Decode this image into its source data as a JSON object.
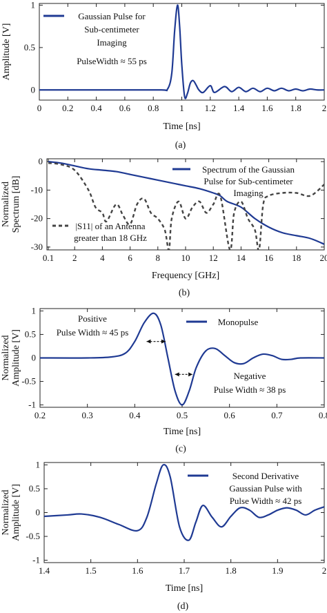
{
  "chart_data": [
    {
      "type": "line",
      "caption": "(a)",
      "xlabel": "Time [ns]",
      "ylabel": "Amplitude [V]",
      "xlim": [
        0,
        2
      ],
      "ylim": [
        -0.12,
        1.02
      ],
      "xticks": [
        "0",
        "0.2",
        "0.4",
        "0.6",
        "0.8",
        "1",
        "1.2",
        "1.4",
        "1.6",
        "1.8",
        "2"
      ],
      "yticks": [
        "0",
        "0.5",
        "1"
      ],
      "legend_position": "top-left",
      "color": "#1f3a93",
      "series": [
        {
          "name": "Gaussian Pulse for Sub-centimeter Imaging",
          "legend_lines": [
            "Gaussian Pulse for",
            "Sub-centimeter",
            "Imaging"
          ],
          "x": [
            0,
            0.5,
            0.85,
            0.9,
            0.93,
            0.95,
            0.97,
            0.985,
            1.0,
            1.02,
            1.04,
            1.06,
            1.08,
            1.1,
            1.12,
            1.15,
            1.2,
            1.23,
            1.3,
            1.35,
            1.4,
            1.45,
            1.5,
            1.55,
            1.6,
            1.65,
            1.7,
            1.75,
            1.8,
            1.85,
            1.9,
            1.95,
            2.0
          ],
          "y": [
            0,
            0,
            0,
            0.01,
            0.2,
            0.7,
            1.0,
            0.75,
            0.3,
            -0.08,
            -0.04,
            0.08,
            0.11,
            0.06,
            0.0,
            -0.03,
            0.05,
            -0.03,
            0.04,
            -0.02,
            0.03,
            -0.02,
            0.02,
            -0.02,
            0.02,
            -0.01,
            0.02,
            -0.01,
            0.01,
            -0.01,
            0.01,
            0.0,
            0.0
          ]
        }
      ],
      "annotation": "PulseWidth ≈ 55 ps"
    },
    {
      "type": "line",
      "caption": "(b)",
      "xlabel": "Frequency [GHz]",
      "ylabel_lines": [
        "Normalized",
        "Spectrum [dB]"
      ],
      "xlim": [
        0,
        20
      ],
      "ylim": [
        -31,
        1
      ],
      "xtick_values": [
        0.1,
        2,
        4,
        6,
        8,
        10,
        12,
        14,
        16,
        18,
        20
      ],
      "xticks": [
        "0.1",
        "2",
        "4",
        "6",
        "8",
        "10",
        "12",
        "14",
        "16",
        "18",
        "20"
      ],
      "ytick_values": [
        0,
        -10,
        -20,
        -30
      ],
      "yticks": [
        "0",
        "-10",
        "-20",
        "-30"
      ],
      "legend_position": "top-right",
      "series": [
        {
          "name": "Spectrum of the Gaussian Pulse for Sub-centimeter Imaging",
          "legend_lines": [
            "Spectrum of the Gaussian",
            "Pulse for Sub-centimeter",
            "Imaging"
          ],
          "style": "solid",
          "color": "#1f3a93",
          "x": [
            0.1,
            1,
            2,
            3,
            4,
            5,
            6,
            7,
            8,
            9,
            10,
            11,
            12,
            12.5,
            13,
            14,
            15,
            16,
            17,
            18,
            19,
            20
          ],
          "y": [
            0,
            -0.5,
            -1.5,
            -2.5,
            -3,
            -3.5,
            -4.5,
            -5.5,
            -6.5,
            -7.5,
            -8.5,
            -9.5,
            -11,
            -12,
            -14,
            -16,
            -20,
            -23,
            -25,
            -26,
            -27,
            -29
          ]
        },
        {
          "name": "|S11| of an Antenna greater than 18 GHz",
          "legend_lines": [
            "|S11| of an Antenna",
            "greater than 18 GHz"
          ],
          "style": "dashed",
          "color": "#444444",
          "x": [
            0.1,
            1,
            2,
            3,
            3.5,
            4,
            4.3,
            5,
            5.5,
            6,
            6.5,
            7,
            7.5,
            8,
            8.5,
            8.8,
            9,
            9.5,
            10,
            10.5,
            11,
            11.5,
            12,
            12.5,
            13.2,
            13.5,
            14,
            14.5,
            15,
            15.3,
            15.6,
            16,
            17,
            18,
            19,
            20
          ],
          "y": [
            -0.5,
            -1,
            -3,
            -10,
            -16,
            -18,
            -21,
            -15,
            -19,
            -22,
            -15,
            -13,
            -18,
            -20,
            -24,
            -31,
            -20,
            -14,
            -20,
            -16,
            -14,
            -18,
            -15,
            -12,
            -31,
            -18,
            -14,
            -20,
            -24,
            -31,
            -15,
            -12,
            -11,
            -11,
            -12,
            -8
          ]
        }
      ]
    },
    {
      "type": "line",
      "caption": "(c)",
      "xlabel": "Time [ns]",
      "ylabel_lines": [
        "Normalized",
        "Amplitude [V]"
      ],
      "xlim": [
        0.2,
        0.8
      ],
      "ylim": [
        -1.05,
        1.05
      ],
      "xtick_values": [
        0.2,
        0.3,
        0.4,
        0.5,
        0.6,
        0.7,
        0.8
      ],
      "xticks": [
        "0.2",
        "0.3",
        "0.4",
        "0.5",
        "0.6",
        "0.7",
        "0.8"
      ],
      "ytick_values": [
        1,
        0.5,
        0,
        -0.5,
        -1
      ],
      "yticks": [
        "1",
        "0.5",
        "0",
        "-0.5",
        "-1"
      ],
      "legend_position": "top-right",
      "series": [
        {
          "name": "Monopulse",
          "legend_lines": [
            "Monopulse"
          ],
          "style": "solid",
          "color": "#1f3a93",
          "x": [
            0.2,
            0.3,
            0.35,
            0.38,
            0.4,
            0.42,
            0.44,
            0.455,
            0.47,
            0.485,
            0.5,
            0.515,
            0.53,
            0.55,
            0.57,
            0.59,
            0.61,
            0.63,
            0.65,
            0.67,
            0.69,
            0.71,
            0.73,
            0.75,
            0.8
          ],
          "y": [
            0,
            0,
            0.02,
            0.1,
            0.35,
            0.75,
            0.95,
            0.7,
            0.0,
            -0.7,
            -1.0,
            -0.7,
            -0.2,
            0.15,
            0.2,
            0.05,
            -0.1,
            -0.12,
            0.0,
            0.08,
            0.05,
            -0.03,
            -0.03,
            0.0,
            0.0
          ]
        }
      ],
      "annotations": {
        "positive": [
          "Positive",
          "Pulse Width ≈ 45 ps"
        ],
        "negative": [
          "Negative",
          "Pulse Width ≈ 38 ps"
        ]
      }
    },
    {
      "type": "line",
      "caption": "(d)",
      "xlabel": "Time [ns]",
      "ylabel_lines": [
        "Normalized",
        "Amplitude [V]"
      ],
      "xlim": [
        1.4,
        2.0
      ],
      "ylim": [
        -1.05,
        1.05
      ],
      "xtick_values": [
        1.4,
        1.5,
        1.6,
        1.7,
        1.8,
        1.9,
        2.0
      ],
      "xticks": [
        "1.4",
        "1.5",
        "1.6",
        "1.7",
        "1.8",
        "1.9",
        "2"
      ],
      "ytick_values": [
        1,
        0.5,
        0,
        -0.5,
        -1
      ],
      "yticks": [
        "1",
        "0.5",
        "0",
        "-0.5",
        "-1"
      ],
      "legend_position": "top-right",
      "series": [
        {
          "name": "Second Derivative Gaussian Pulse with Pulse Width ≈ 42 ps",
          "legend_lines": [
            "Second Derivative",
            "Gaussian Pulse with",
            "Pulse Width ≈ 42 ps"
          ],
          "style": "solid",
          "color": "#1f3a93",
          "x": [
            1.4,
            1.45,
            1.48,
            1.52,
            1.56,
            1.6,
            1.62,
            1.64,
            1.655,
            1.67,
            1.69,
            1.71,
            1.725,
            1.74,
            1.76,
            1.78,
            1.8,
            1.82,
            1.84,
            1.86,
            1.88,
            1.9,
            1.92,
            1.94,
            1.96,
            1.98,
            2.0
          ],
          "y": [
            -0.08,
            -0.05,
            -0.03,
            -0.1,
            -0.25,
            -0.38,
            -0.1,
            0.6,
            1.0,
            0.75,
            -0.3,
            -0.58,
            -0.2,
            0.15,
            -0.1,
            -0.3,
            -0.08,
            0.1,
            0.05,
            -0.1,
            -0.05,
            0.05,
            0.1,
            0.05,
            -0.05,
            0.05,
            0.12
          ]
        }
      ]
    }
  ]
}
